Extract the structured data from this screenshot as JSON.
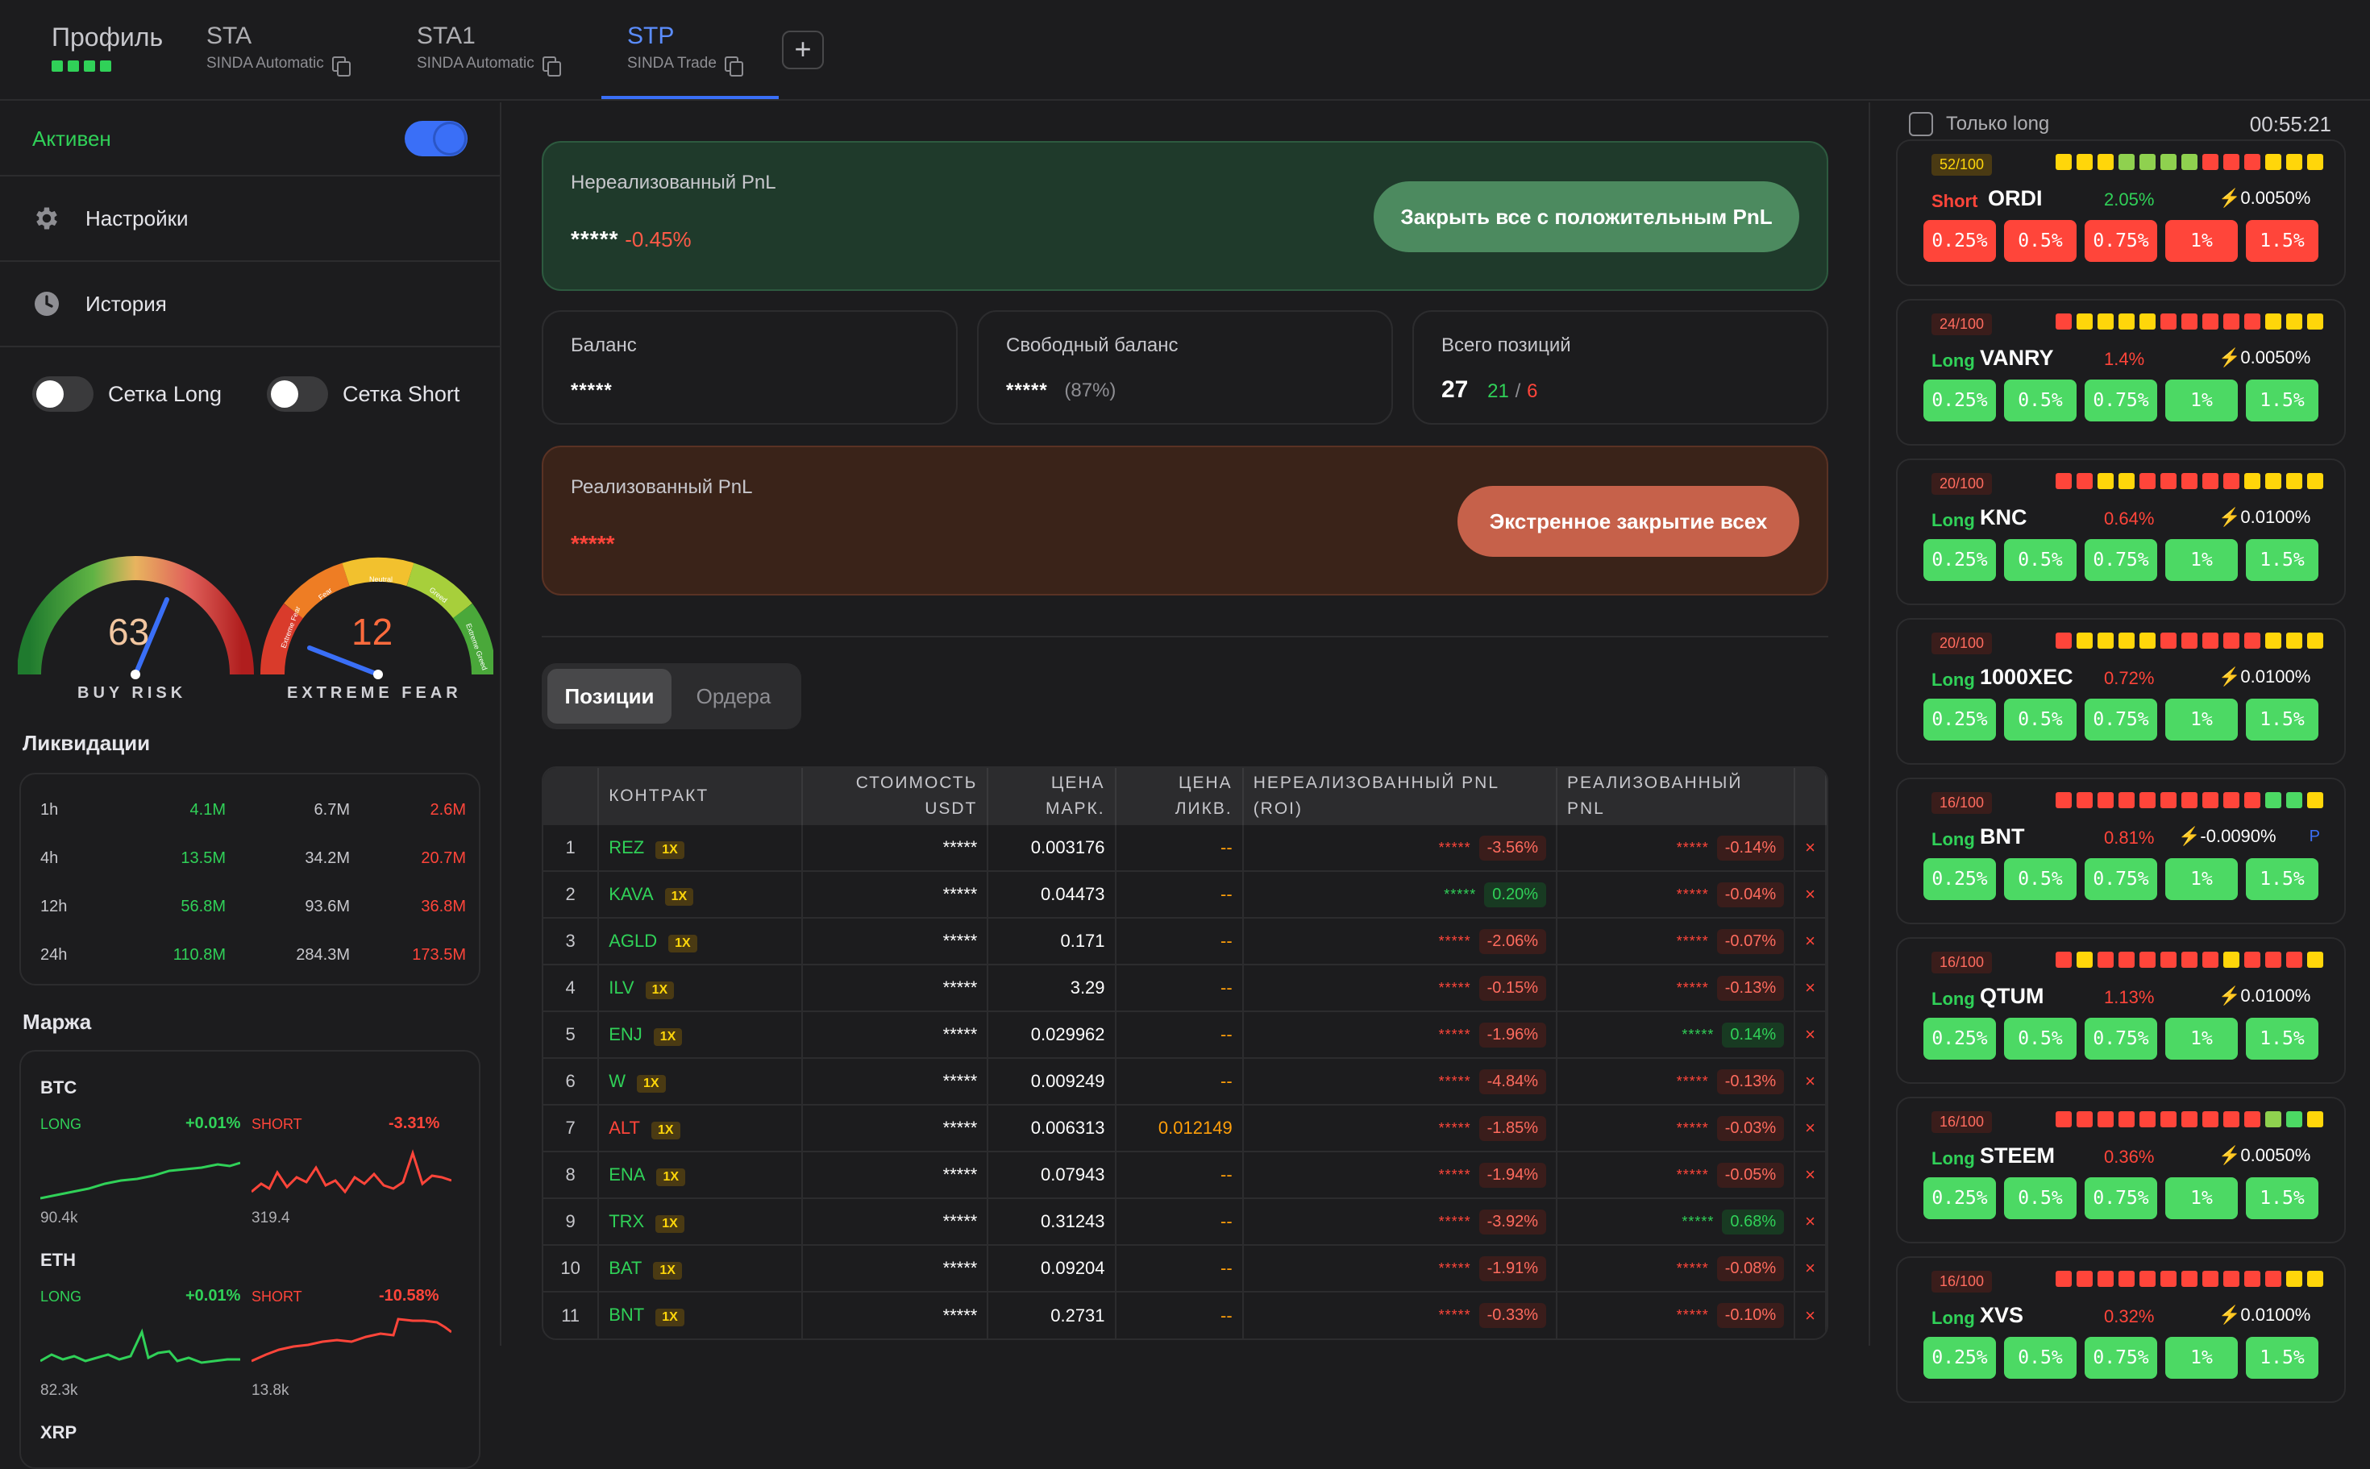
{
  "tabs": [
    {
      "title": "Профиль"
    },
    {
      "title": "STA",
      "sub": "SINDA Automatic"
    },
    {
      "title": "STA1",
      "sub": "SINDA Automatic"
    },
    {
      "title": "STP",
      "sub": "SINDA Trade"
    }
  ],
  "add_tab": "+",
  "sidebar": {
    "active_label": "Активен",
    "settings": "Настройки",
    "history": "История",
    "grid_long": "Сетка Long",
    "grid_short": "Сетка Short",
    "gauge1": {
      "value": "63",
      "label": "BUY RISK"
    },
    "gauge2": {
      "value": "12",
      "label": "EXTREME FEAR",
      "segments": [
        "Extreme Fear",
        "Fear",
        "Neutral",
        "Greed",
        "Extreme Greed"
      ]
    },
    "liq_title": "Ликвидации",
    "liq_rows": [
      {
        "p": "1h",
        "a": "4.1M",
        "b": "6.7M",
        "c": "2.6M"
      },
      {
        "p": "4h",
        "a": "13.5M",
        "b": "34.2M",
        "c": "20.7M"
      },
      {
        "p": "12h",
        "a": "56.8M",
        "b": "93.6M",
        "c": "36.8M"
      },
      {
        "p": "24h",
        "a": "110.8M",
        "b": "284.3M",
        "c": "173.5M"
      }
    ],
    "margin_title": "Маржа",
    "margin": [
      {
        "asset": "BTC",
        "long": "LONG",
        "long_pct": "+0.01%",
        "long_cnt": "90.4k",
        "short": "SHORT",
        "short_pct": "-3.31%",
        "short_cnt": "319.4"
      },
      {
        "asset": "ETH",
        "long": "LONG",
        "long_pct": "+0.01%",
        "long_cnt": "82.3k",
        "short": "SHORT",
        "short_pct": "-10.58%",
        "short_cnt": "13.8k"
      },
      {
        "asset": "XRP"
      }
    ]
  },
  "summary": {
    "upnl_label": "Нереализованный PnL",
    "upnl_stars": "*****",
    "upnl_pct": "-0.45%",
    "close_pos_btn": "Закрыть все с положительным PnL",
    "balance_label": "Баланс",
    "balance_val": "*****",
    "free_label": "Свободный баланс",
    "free_val": "*****",
    "free_pct": "(87%)",
    "total_label": "Всего позиций",
    "total_val": "27",
    "total_long": "21",
    "total_sep": "/",
    "total_short": "6",
    "rpnl_label": "Реализованный PnL",
    "rpnl_stars": "*****",
    "emerg_btn": "Экстренное закрытие всех"
  },
  "segment": {
    "positions": "Позиции",
    "orders": "Ордера"
  },
  "table": {
    "headers": [
      "",
      "КОНТРАКТ",
      "СТОИМОСТЬ USDT",
      "ЦЕНА МАРК.",
      "ЦЕНА ЛИКВ.",
      "НЕРЕАЛИЗОВАННЫЙ PNL (ROI)",
      "РЕАЛИЗОВАННЫЙ PNL",
      ""
    ],
    "rows": [
      {
        "n": "1",
        "sym": "REZ",
        "lev": "1X",
        "val": "*****",
        "mark": "0.003176",
        "liq": "--",
        "u_stars": "*****",
        "u_pct": "-3.56%",
        "r_stars": "*****",
        "r_pct": "-0.14%",
        "x": "×"
      },
      {
        "n": "2",
        "sym": "KAVA",
        "lev": "1X",
        "val": "*****",
        "mark": "0.04473",
        "liq": "--",
        "u_stars": "*****",
        "u_pct": "0.20%",
        "r_stars": "*****",
        "r_pct": "-0.04%",
        "x": "×"
      },
      {
        "n": "3",
        "sym": "AGLD",
        "lev": "1X",
        "val": "*****",
        "mark": "0.171",
        "liq": "--",
        "u_stars": "*****",
        "u_pct": "-2.06%",
        "r_stars": "*****",
        "r_pct": "-0.07%",
        "x": "×"
      },
      {
        "n": "4",
        "sym": "ILV",
        "lev": "1X",
        "val": "*****",
        "mark": "3.29",
        "liq": "--",
        "u_stars": "*****",
        "u_pct": "-0.15%",
        "r_stars": "*****",
        "r_pct": "-0.13%",
        "x": "×"
      },
      {
        "n": "5",
        "sym": "ENJ",
        "lev": "1X",
        "val": "*****",
        "mark": "0.029962",
        "liq": "--",
        "u_stars": "*****",
        "u_pct": "-1.96%",
        "r_stars": "*****",
        "r_pct": "0.14%",
        "x": "×"
      },
      {
        "n": "6",
        "sym": "W",
        "lev": "1X",
        "val": "*****",
        "mark": "0.009249",
        "liq": "--",
        "u_stars": "*****",
        "u_pct": "-4.84%",
        "r_stars": "*****",
        "r_pct": "-0.13%",
        "x": "×"
      },
      {
        "n": "7",
        "sym": "ALT",
        "lev": "1X",
        "val": "*****",
        "mark": "0.006313",
        "liq": "0.012149",
        "u_stars": "*****",
        "u_pct": "-1.85%",
        "r_stars": "*****",
        "r_pct": "-0.03%",
        "x": "×"
      },
      {
        "n": "8",
        "sym": "ENA",
        "lev": "1X",
        "val": "*****",
        "mark": "0.07943",
        "liq": "--",
        "u_stars": "*****",
        "u_pct": "-1.94%",
        "r_stars": "*****",
        "r_pct": "-0.05%",
        "x": "×"
      },
      {
        "n": "9",
        "sym": "TRX",
        "lev": "1X",
        "val": "*****",
        "mark": "0.31243",
        "liq": "--",
        "u_stars": "*****",
        "u_pct": "-3.92%",
        "r_stars": "*****",
        "r_pct": "0.68%",
        "x": "×"
      },
      {
        "n": "10",
        "sym": "BAT",
        "lev": "1X",
        "val": "*****",
        "mark": "0.09204",
        "liq": "--",
        "u_stars": "*****",
        "u_pct": "-1.91%",
        "r_stars": "*****",
        "r_pct": "-0.08%",
        "x": "×"
      },
      {
        "n": "11",
        "sym": "BNT",
        "lev": "1X",
        "val": "*****",
        "mark": "0.2731",
        "liq": "--",
        "u_stars": "*****",
        "u_pct": "-0.33%",
        "r_stars": "*****",
        "r_pct": "-0.10%",
        "x": "×"
      }
    ]
  },
  "right": {
    "only_long": "Только long",
    "clock": "00:55:21",
    "levels": [
      "0.25%",
      "0.5%",
      "0.75%",
      "1%",
      "1.5%"
    ],
    "signals": [
      {
        "score": "52/100",
        "side": "Short",
        "coin": "ORDI",
        "chg": "2.05%",
        "fund": "0.0050%"
      },
      {
        "score": "24/100",
        "side": "Long",
        "coin": "VANRY",
        "chg": "1.4%",
        "fund": "0.0050%"
      },
      {
        "score": "20/100",
        "side": "Long",
        "coin": "KNC",
        "chg": "0.64%",
        "fund": "0.0100%"
      },
      {
        "score": "20/100",
        "side": "Long",
        "coin": "1000XEC",
        "chg": "0.72%",
        "fund": "0.0100%"
      },
      {
        "score": "16/100",
        "side": "Long",
        "coin": "BNT",
        "chg": "0.81%",
        "fund": "-0.0090%",
        "extra": "P"
      },
      {
        "score": "16/100",
        "side": "Long",
        "coin": "QTUM",
        "chg": "1.13%",
        "fund": "0.0100%"
      },
      {
        "score": "16/100",
        "side": "Long",
        "coin": "STEEM",
        "chg": "0.36%",
        "fund": "0.0050%"
      },
      {
        "score": "16/100",
        "side": "Long",
        "coin": "XVS",
        "chg": "0.32%",
        "fund": "0.0100%"
      }
    ]
  },
  "colors": {
    "green": "#30d158",
    "red": "#ff453a",
    "blue": "#3a6ff7",
    "yellow": "#ffd60a"
  }
}
